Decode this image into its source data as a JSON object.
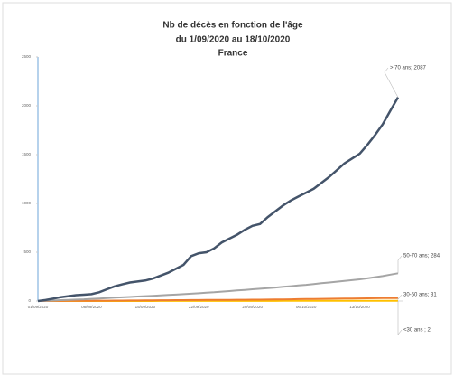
{
  "chart_data": {
    "type": "line",
    "title": [
      "Nb de  décès en fonction de l'âge",
      "du 1/09/2020 au 18/10/2020",
      "France"
    ],
    "categories": [
      "01/09/2020",
      null,
      null,
      null,
      null,
      null,
      null,
      "08/09/2020",
      null,
      null,
      null,
      null,
      null,
      null,
      "15/09/2020",
      null,
      null,
      null,
      null,
      null,
      null,
      "22/09/2020",
      null,
      null,
      null,
      null,
      null,
      null,
      "29/09/2020",
      null,
      null,
      null,
      null,
      null,
      null,
      "06/10/2020",
      null,
      null,
      null,
      null,
      null,
      null,
      "13/10/2020",
      null,
      null,
      null,
      null,
      null
    ],
    "series": [
      {
        "name": "> 70 ans; 2087",
        "color": "#44546a",
        "values": [
          0,
          10,
          25,
          40,
          50,
          60,
          65,
          70,
          90,
          120,
          150,
          170,
          190,
          200,
          210,
          230,
          260,
          290,
          330,
          370,
          460,
          490,
          500,
          540,
          600,
          640,
          680,
          730,
          770,
          790,
          860,
          920,
          980,
          1030,
          1070,
          1110,
          1150,
          1210,
          1270,
          1340,
          1410,
          1460,
          1510,
          1600,
          1700,
          1810,
          1950,
          2087
        ]
      },
      {
        "name": "50-70 ans; 284",
        "color": "#a5a5a5",
        "values": [
          0,
          3,
          6,
          9,
          12,
          15,
          18,
          22,
          26,
          30,
          34,
          38,
          42,
          46,
          50,
          54,
          58,
          62,
          66,
          70,
          75,
          80,
          85,
          90,
          96,
          102,
          108,
          114,
          120,
          126,
          132,
          138,
          145,
          152,
          159,
          166,
          174,
          182,
          190,
          198,
          206,
          214,
          222,
          232,
          244,
          256,
          270,
          284
        ]
      },
      {
        "name": "30-50 ans; 31",
        "color": "#ed7d31",
        "values": [
          0,
          0,
          1,
          1,
          2,
          2,
          3,
          3,
          4,
          4,
          5,
          5,
          6,
          6,
          7,
          7,
          8,
          8,
          9,
          9,
          10,
          10,
          11,
          11,
          12,
          12,
          13,
          13,
          14,
          14,
          15,
          16,
          17,
          18,
          19,
          20,
          21,
          22,
          23,
          24,
          25,
          26,
          27,
          28,
          29,
          30,
          30,
          31
        ]
      },
      {
        "name": "<30 ans ; 2",
        "color": "#ffc000",
        "values": [
          0,
          0,
          0,
          0,
          0,
          0,
          0,
          0,
          0,
          0,
          0,
          0,
          0,
          0,
          0,
          0,
          1,
          1,
          1,
          1,
          1,
          1,
          1,
          1,
          1,
          1,
          1,
          1,
          1,
          1,
          1,
          1,
          2,
          2,
          2,
          2,
          2,
          2,
          2,
          2,
          2,
          2,
          2,
          2,
          2,
          2,
          2,
          2
        ]
      }
    ],
    "ylim": [
      0,
      2500
    ],
    "yticks": [
      0,
      500,
      1000,
      1500,
      2000,
      2500
    ]
  }
}
